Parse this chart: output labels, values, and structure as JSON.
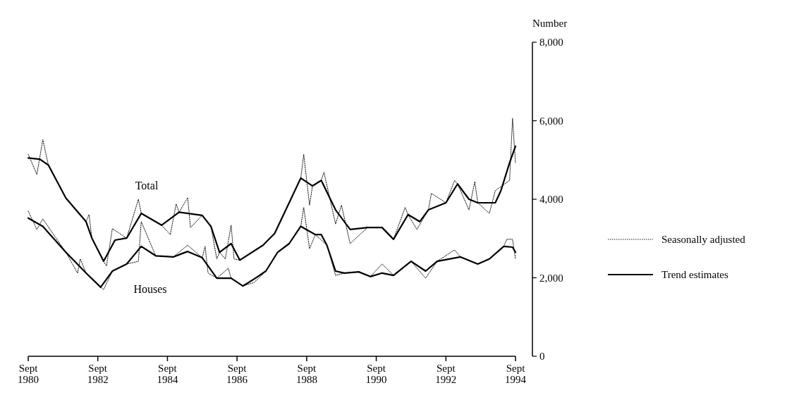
{
  "chart_data": {
    "type": "line",
    "ylabel": "Number",
    "xlim": [
      "1980-09",
      "1994-09"
    ],
    "xticks": [
      {
        "value": "1980-09",
        "label": "Sept 1980"
      },
      {
        "value": "1982-09",
        "label": "Sept 1982"
      },
      {
        "value": "1984-09",
        "label": "Sept 1984"
      },
      {
        "value": "1986-09",
        "label": "Sept 1986"
      },
      {
        "value": "1988-09",
        "label": "Sept 1988"
      },
      {
        "value": "1990-09",
        "label": "Sept 1990"
      },
      {
        "value": "1992-09",
        "label": "Sept 1992"
      },
      {
        "value": "1994-09",
        "label": "Sept 1994"
      }
    ],
    "ylim": [
      0,
      8000
    ],
    "yticks": [
      0,
      {
        "value": 2000,
        "label": "2,000"
      },
      {
        "value": 4000,
        "label": "4,000"
      },
      {
        "value": 6000,
        "label": "6,000"
      },
      {
        "value": 8000,
        "label": "8,000"
      }
    ],
    "legend": "right",
    "grid": false,
    "annotations": [
      "Total",
      "Houses"
    ],
    "series": [
      {
        "name": "Seasonally adjusted",
        "color": "#000000",
        "line_style": "dotted",
        "x": [
          "1980-09",
          "1980-12",
          "1981-02",
          "1981-04",
          "1981-10",
          "1982-05",
          "1982-06",
          "1982-07",
          "1982-11",
          "1982-12",
          "1983-02",
          "1983-07",
          "1983-11",
          "1983-12",
          "1984-07",
          "1984-10",
          "1984-12",
          "1985-01",
          "1985-04",
          "1985-05",
          "1985-09",
          "1985-12",
          "1986-02",
          "1986-03",
          "1986-05",
          "1986-07",
          "1986-08",
          "1986-10",
          "1987-06",
          "1987-10",
          "1988-03",
          "1988-07",
          "1988-08",
          "1988-10",
          "1988-11",
          "1989-02",
          "1989-03",
          "1989-07",
          "1989-09",
          "1989-12",
          "1990-06",
          "1990-11",
          "1991-03",
          "1991-07",
          "1991-08",
          "1991-11",
          "1992-03",
          "1992-04",
          "1992-09",
          "1992-12",
          "1993-01",
          "1993-05",
          "1993-07",
          "1993-08",
          "1993-12",
          "1994-02",
          "1994-07",
          "1994-08",
          "1994-09"
        ],
        "values": [
          5150,
          4630,
          5520,
          4870,
          4030,
          3430,
          3610,
          3010,
          2420,
          2300,
          3250,
          3010,
          4000,
          3640,
          3340,
          3100,
          3880,
          3670,
          4040,
          3280,
          3590,
          3310,
          2480,
          2650,
          2480,
          3340,
          2480,
          2450,
          2830,
          3130,
          3910,
          4540,
          5140,
          3850,
          4340,
          4480,
          4690,
          3370,
          3850,
          2870,
          3280,
          3280,
          2980,
          3790,
          3610,
          3230,
          3730,
          4150,
          3910,
          4480,
          4390,
          3730,
          4450,
          3910,
          3640,
          4220,
          4480,
          6060,
          4930
        ]
      },
      {
        "name": "Trend estimates",
        "color": "#000000",
        "line_style": "solid",
        "x": [
          "1980-09",
          "1981-01",
          "1981-04",
          "1981-10",
          "1982-05",
          "1982-07",
          "1982-11",
          "1983-03",
          "1983-07",
          "1983-12",
          "1984-07",
          "1985-01",
          "1985-09",
          "1985-12",
          "1986-03",
          "1986-07",
          "1986-10",
          "1987-06",
          "1987-10",
          "1988-03",
          "1988-07",
          "1988-11",
          "1989-02",
          "1989-07",
          "1989-12",
          "1990-06",
          "1990-11",
          "1991-03",
          "1991-08",
          "1991-12",
          "1992-03",
          "1992-09",
          "1993-01",
          "1993-05",
          "1993-08",
          "1994-02",
          "1994-04",
          "1994-07",
          "1994-09"
        ],
        "values": [
          5050,
          5020,
          4870,
          4030,
          3430,
          3010,
          2420,
          2960,
          3010,
          3640,
          3340,
          3670,
          3590,
          3310,
          2650,
          2870,
          2450,
          2830,
          3130,
          3910,
          4540,
          4340,
          4480,
          3730,
          3230,
          3280,
          3280,
          2980,
          3610,
          3430,
          3730,
          3910,
          4390,
          4000,
          3910,
          3910,
          4220,
          4930,
          5350
        ]
      },
      {
        "color": "#000000",
        "line_style": "dotted",
        "x": [
          "1980-09",
          "1980-12",
          "1981-02",
          "1981-10",
          "1982-02",
          "1982-03",
          "1982-05",
          "1982-10",
          "1982-11",
          "1983-02",
          "1983-07",
          "1983-11",
          "1983-12",
          "1984-05",
          "1984-11",
          "1985-04",
          "1985-09",
          "1985-10",
          "1985-11",
          "1986-02",
          "1986-06",
          "1986-07",
          "1986-11",
          "1987-03",
          "1987-07",
          "1987-11",
          "1988-03",
          "1988-07",
          "1988-08",
          "1988-10",
          "1988-12",
          "1989-04",
          "1989-07",
          "1989-10",
          "1990-03",
          "1990-07",
          "1990-11",
          "1991-03",
          "1991-09",
          "1992-02",
          "1992-06",
          "1992-12",
          "1993-02",
          "1993-08",
          "1993-12",
          "1994-05",
          "1994-06",
          "1994-08",
          "1994-09"
        ],
        "values": [
          3700,
          3230,
          3500,
          2650,
          2120,
          2480,
          2120,
          1760,
          1700,
          2170,
          2350,
          2420,
          3430,
          2560,
          2530,
          2830,
          2510,
          2800,
          2120,
          1990,
          2240,
          1990,
          1790,
          1880,
          2170,
          2650,
          2870,
          3310,
          3790,
          2740,
          3100,
          2830,
          2060,
          2120,
          2150,
          2030,
          2350,
          2060,
          2420,
          1990,
          2420,
          2710,
          2530,
          2350,
          2480,
          2800,
          2980,
          2980,
          2480
        ]
      },
      {
        "color": "#000000",
        "line_style": "solid",
        "x": [
          "1980-09",
          "1981-02",
          "1981-10",
          "1982-05",
          "1982-10",
          "1983-02",
          "1983-07",
          "1983-12",
          "1984-05",
          "1984-11",
          "1985-04",
          "1985-09",
          "1986-02",
          "1986-07",
          "1986-11",
          "1987-03",
          "1987-07",
          "1987-11",
          "1988-03",
          "1988-07",
          "1988-12",
          "1989-02",
          "1989-04",
          "1989-07",
          "1989-10",
          "1990-03",
          "1990-07",
          "1990-11",
          "1991-03",
          "1991-09",
          "1992-02",
          "1992-06",
          "1993-02",
          "1993-08",
          "1993-12",
          "1994-05",
          "1994-08",
          "1994-09"
        ],
        "values": [
          3520,
          3310,
          2650,
          2120,
          1760,
          2170,
          2350,
          2800,
          2560,
          2530,
          2670,
          2510,
          1990,
          1990,
          1790,
          1970,
          2170,
          2650,
          2870,
          3310,
          3100,
          3100,
          2830,
          2170,
          2120,
          2150,
          2030,
          2120,
          2060,
          2420,
          2170,
          2420,
          2530,
          2350,
          2480,
          2800,
          2780,
          2650
        ]
      }
    ]
  }
}
